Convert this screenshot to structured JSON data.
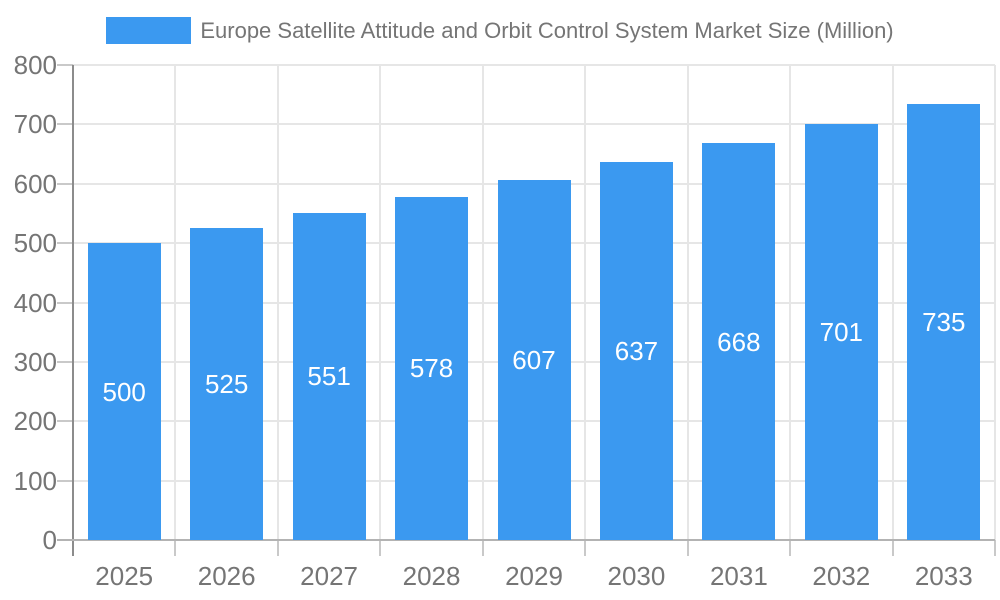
{
  "chart_data": {
    "type": "bar",
    "title": "Europe Satellite Attitude and Orbit Control System Market Size (Million)",
    "categories": [
      "2025",
      "2026",
      "2027",
      "2028",
      "2029",
      "2030",
      "2031",
      "2032",
      "2033"
    ],
    "values": [
      500,
      525,
      551,
      578,
      607,
      637,
      668,
      701,
      735
    ],
    "xlabel": "",
    "ylabel": "",
    "ylim": [
      0,
      800
    ],
    "yticks": [
      0,
      100,
      200,
      300,
      400,
      500,
      600,
      700,
      800
    ],
    "grid": true,
    "legend_position": "top",
    "value_label_position": "inside-center"
  },
  "colors": {
    "bar": "#3B99F0",
    "legend_text": "#757575",
    "axis_text": "#757575",
    "value_text": "#FFFFFF",
    "gridline": "#E6E6E6",
    "tick": "#C9C9C9",
    "x_axis_line": "#B3B3B3",
    "y_axis_line": "#8C8C8C",
    "background": "#FFFFFF"
  }
}
